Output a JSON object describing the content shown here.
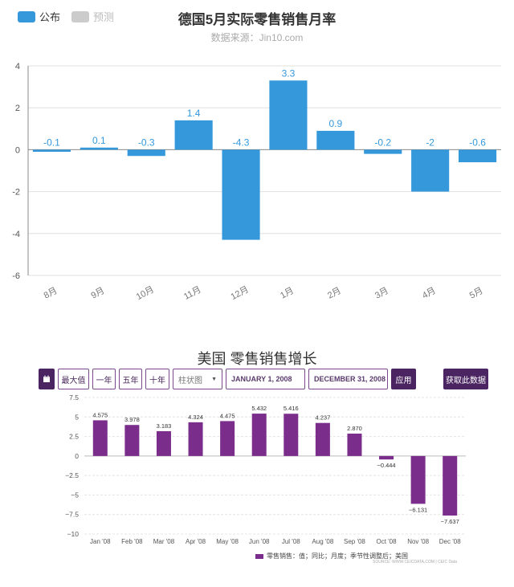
{
  "chart1": {
    "legend": [
      {
        "label": "公布",
        "color": "#3498db"
      },
      {
        "label": "预测",
        "color": "#cccccc"
      }
    ],
    "title": "德国5月实际零售销售月率",
    "subtitle": "数据来源：Jin10.com"
  },
  "toolbar2": {
    "max_label": "最大值",
    "one_year_label": "一年",
    "five_year_label": "五年",
    "ten_year_label": "十年",
    "chart_type_value": "柱状图",
    "start_date": "JANUARY 1, 2008",
    "end_date": "DECEMBER 31, 2008",
    "apply_label": "应用",
    "get_data_label": "获取此数据"
  },
  "chart2": {
    "title": "美国 零售销售增长",
    "legend_label": "零售销售：值；同比；月度；季节性调整后；美国",
    "source": "SOURCE: WWW.CEICDATA.COM | CEIC Data"
  },
  "chart_data": [
    {
      "type": "bar",
      "title": "德国5月实际零售销售月率",
      "subtitle": "数据来源：Jin10.com",
      "categories": [
        "8月",
        "9月",
        "10月",
        "11月",
        "12月",
        "1月",
        "2月",
        "3月",
        "4月",
        "5月"
      ],
      "series": [
        {
          "name": "公布",
          "color": "#3498db",
          "values": [
            -0.1,
            0.1,
            -0.3,
            1.4,
            -4.3,
            3.3,
            0.9,
            -0.2,
            -2,
            -0.6
          ]
        }
      ],
      "data_labels": [
        "-0.1",
        "0.1",
        "-0.3",
        "1.4",
        "-4.3",
        "3.3",
        "0.9",
        "-0.2",
        "-2",
        "-0.6"
      ],
      "ylim": [
        -6,
        4
      ],
      "yticks": [
        -6,
        -4,
        -2,
        0,
        2,
        4
      ],
      "ytick_labels": [
        "-6",
        "-4",
        "-2",
        "0",
        "2",
        "4"
      ],
      "grid": true,
      "legend_position": "top-left"
    },
    {
      "type": "bar",
      "title": "美国 零售销售增长",
      "categories": [
        "Jan '08",
        "Feb '08",
        "Mar '08",
        "Apr '08",
        "May '08",
        "Jun '08",
        "Jul '08",
        "Aug '08",
        "Sep '08",
        "Oct '08",
        "Nov '08",
        "Dec '08"
      ],
      "series": [
        {
          "name": "零售销售：值；同比；月度；季节性调整后；美国",
          "color": "#7b2d8b",
          "values": [
            4.575,
            3.978,
            3.183,
            4.324,
            4.475,
            5.432,
            5.416,
            4.237,
            2.87,
            -0.444,
            -6.131,
            -7.637
          ]
        }
      ],
      "data_labels": [
        "4.575",
        "3.978",
        "3.183",
        "4.324",
        "4.475",
        "5.432",
        "5.416",
        "4.237",
        "2.870",
        "−0.444",
        "−6.131",
        "−7.637"
      ],
      "ylim": [
        -10,
        7.5
      ],
      "yticks": [
        -10,
        -7.5,
        -5,
        -2.5,
        0,
        2.5,
        5,
        7.5
      ],
      "ytick_labels": [
        "−10",
        "−7.5",
        "−5",
        "−2.5",
        "0",
        "2.5",
        "5",
        "7.5"
      ],
      "grid": true,
      "legend_position": "bottom"
    }
  ]
}
